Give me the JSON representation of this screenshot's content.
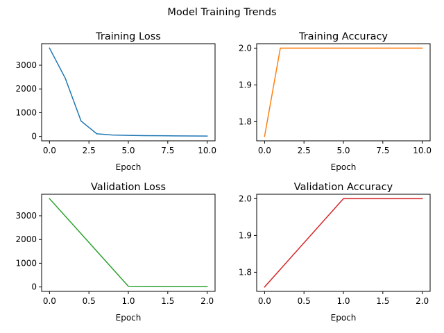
{
  "figure": {
    "suptitle": "Model Training Trends"
  },
  "chart_data": [
    {
      "type": "line",
      "title": "Training Loss",
      "xlabel": "Epoch",
      "ylabel": "",
      "x": [
        0,
        1,
        2,
        3,
        4,
        5,
        6,
        7,
        8,
        9,
        10
      ],
      "series": [
        {
          "values": [
            3720,
            2450,
            650,
            110,
            60,
            45,
            35,
            28,
            22,
            18,
            15
          ],
          "color": "#1f77b4"
        }
      ],
      "xlim": [
        -0.5,
        10.5
      ],
      "ylim": [
        -186,
        3906
      ],
      "xticks": [
        0.0,
        2.5,
        5.0,
        7.5,
        10.0
      ],
      "xtick_labels": [
        "0.0",
        "2.5",
        "5.0",
        "7.5",
        "10.0"
      ],
      "yticks": [
        0,
        1000,
        2000,
        3000
      ],
      "ytick_labels": [
        "0",
        "1000",
        "2000",
        "3000"
      ]
    },
    {
      "type": "line",
      "title": "Training Accuracy",
      "xlabel": "Epoch",
      "ylabel": "",
      "x": [
        0,
        1,
        2,
        3,
        4,
        5,
        6,
        7,
        8,
        9,
        10
      ],
      "series": [
        {
          "values": [
            1.76,
            2.0,
            2.0,
            2.0,
            2.0,
            2.0,
            2.0,
            2.0,
            2.0,
            2.0,
            2.0
          ],
          "color": "#ff7f0e"
        }
      ],
      "xlim": [
        -0.5,
        10.5
      ],
      "ylim": [
        1.748,
        2.012
      ],
      "xticks": [
        0.0,
        2.5,
        5.0,
        7.5,
        10.0
      ],
      "xtick_labels": [
        "0.0",
        "2.5",
        "5.0",
        "7.5",
        "10.0"
      ],
      "yticks": [
        1.8,
        1.9,
        2.0
      ],
      "ytick_labels": [
        "1.8",
        "1.9",
        "2.0"
      ]
    },
    {
      "type": "line",
      "title": "Validation Loss",
      "xlabel": "Epoch",
      "ylabel": "",
      "x": [
        0,
        1,
        2
      ],
      "series": [
        {
          "values": [
            3720,
            30,
            15
          ],
          "color": "#2ca02c"
        }
      ],
      "xlim": [
        -0.1,
        2.1
      ],
      "ylim": [
        -186,
        3906
      ],
      "xticks": [
        0.0,
        0.5,
        1.0,
        1.5,
        2.0
      ],
      "xtick_labels": [
        "0.0",
        "0.5",
        "1.0",
        "1.5",
        "2.0"
      ],
      "yticks": [
        0,
        1000,
        2000,
        3000
      ],
      "ytick_labels": [
        "0",
        "1000",
        "2000",
        "3000"
      ]
    },
    {
      "type": "line",
      "title": "Validation Accuracy",
      "xlabel": "Epoch",
      "ylabel": "",
      "x": [
        0,
        1,
        2
      ],
      "series": [
        {
          "values": [
            1.76,
            2.0,
            2.0
          ],
          "color": "#d62728"
        }
      ],
      "xlim": [
        -0.1,
        2.1
      ],
      "ylim": [
        1.748,
        2.012
      ],
      "xticks": [
        0.0,
        0.5,
        1.0,
        1.5,
        2.0
      ],
      "xtick_labels": [
        "0.0",
        "0.5",
        "1.0",
        "1.5",
        "2.0"
      ],
      "yticks": [
        1.8,
        1.9,
        2.0
      ],
      "ytick_labels": [
        "1.8",
        "1.9",
        "2.0"
      ]
    }
  ]
}
